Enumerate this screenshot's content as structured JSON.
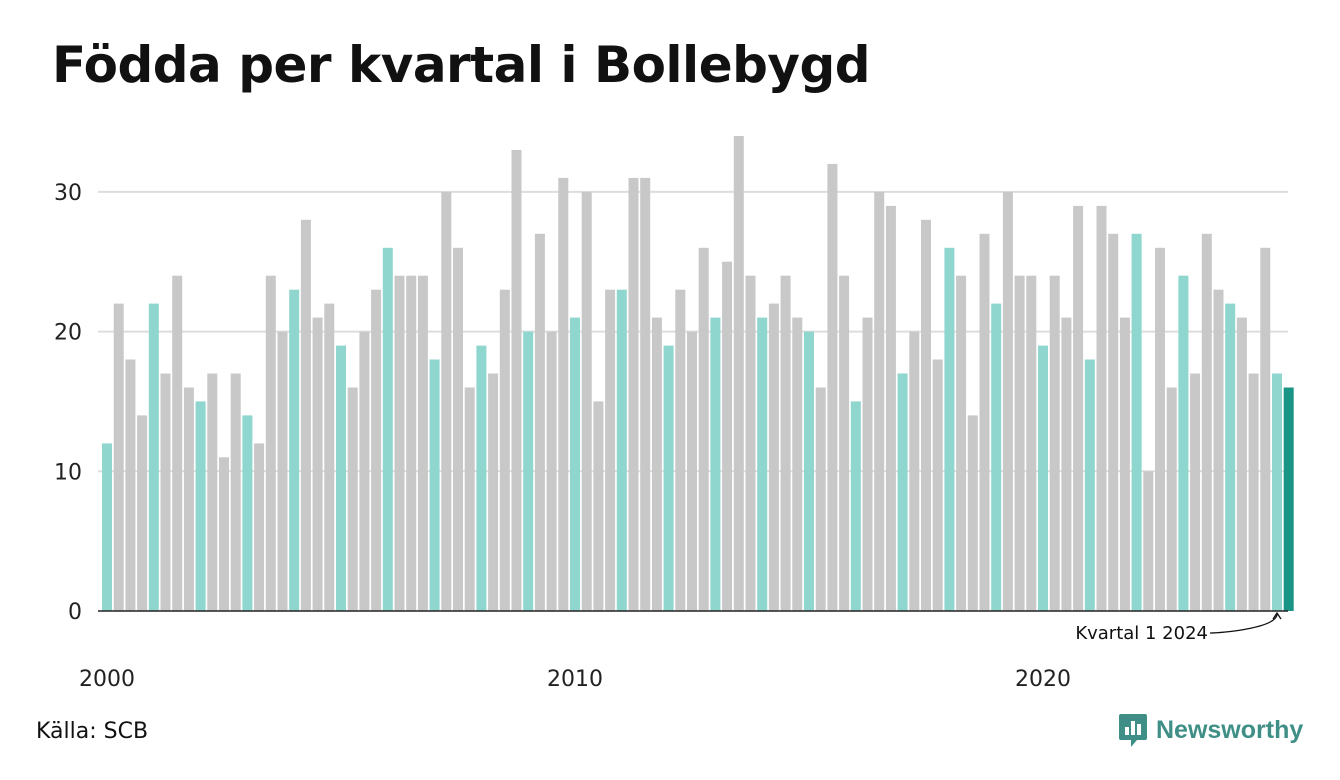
{
  "title": "Födda per kvartal i Bollebygd",
  "source": "Källa: SCB",
  "brand": "Newsworthy",
  "colors": {
    "q1": "#8fd6cf",
    "other": "#c8c8c8",
    "latest": "#1a9485",
    "grid": "#dddddd",
    "axis": "#222222",
    "brand": "#3f8f87"
  },
  "chart_data": {
    "type": "bar",
    "title": "Födda per kvartal i Bollebygd",
    "xlabel": "",
    "ylabel": "",
    "ylim": [
      0,
      34
    ],
    "yticks": [
      0,
      10,
      20,
      30
    ],
    "xticks": [
      "2000",
      "2010",
      "2020"
    ],
    "grid": true,
    "annotation": {
      "text": "Kvartal 1 2024",
      "target": "2024 Q1"
    },
    "series": [
      {
        "values": [
          12,
          22,
          18,
          14,
          22,
          17,
          24,
          16,
          15,
          17,
          11,
          17,
          14,
          12,
          24,
          20,
          23,
          28,
          21,
          22,
          19,
          16,
          20,
          23,
          26,
          24,
          24,
          24,
          18,
          30,
          26,
          16,
          19,
          17,
          23,
          33,
          20,
          27,
          20,
          31,
          21,
          30,
          15,
          23,
          23,
          31,
          31,
          21,
          19,
          23,
          20,
          26,
          21,
          25,
          34,
          24,
          21,
          22,
          24,
          21,
          20,
          16,
          32,
          24,
          15,
          21,
          30,
          29,
          17,
          20,
          28,
          18,
          26,
          24,
          14,
          27,
          22,
          30,
          24,
          24,
          19,
          24,
          21,
          29,
          18,
          29,
          27,
          21,
          27,
          10,
          26,
          16,
          24,
          17,
          27,
          23,
          22,
          21,
          17,
          26,
          17,
          16
        ]
      }
    ]
  }
}
